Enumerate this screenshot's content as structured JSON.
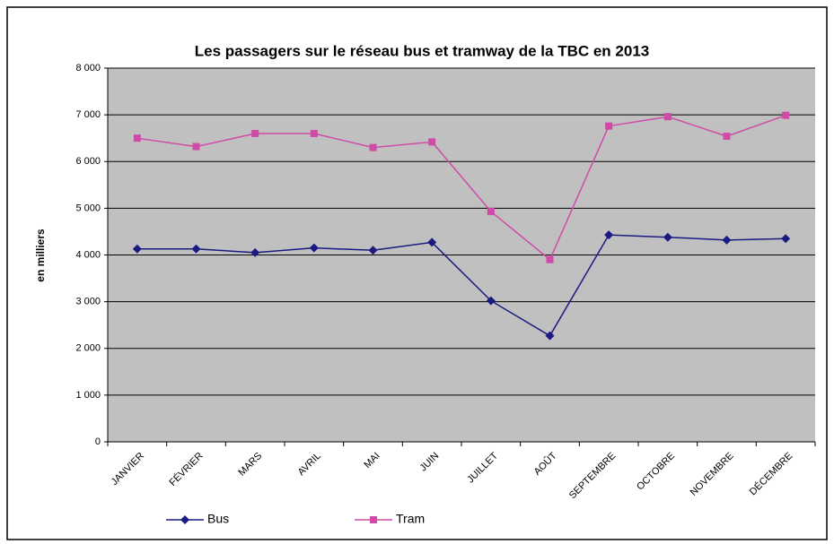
{
  "chart_data": {
    "type": "line",
    "title": "Les passagers sur le réseau bus et tramway de la TBC en 2013",
    "y_label": "en milliers",
    "categories": [
      "JANVIER",
      "FÉVRIER",
      "MARS",
      "AVRIL",
      "MAI",
      "JUIN",
      "JUILLET",
      "AOÛT",
      "SEPTEMBRE",
      "OCTOBRE",
      "NOVEMBRE",
      "DÉCEMBRE"
    ],
    "series": [
      {
        "name": "Bus",
        "color": "#1a1a80",
        "marker": "diamond",
        "values": [
          4130,
          4130,
          4050,
          4150,
          4100,
          4270,
          3020,
          2270,
          4430,
          4380,
          4320,
          4350
        ]
      },
      {
        "name": "Tram",
        "color": "#d04aa8",
        "marker": "square",
        "values": [
          6500,
          6320,
          6600,
          6600,
          6300,
          6420,
          4930,
          3900,
          6760,
          6960,
          6540,
          6990
        ]
      }
    ],
    "ylim": [
      0,
      8000
    ],
    "yticks": [
      0,
      {
        "value": 1000,
        "label": "1 000"
      },
      {
        "value": 2000,
        "label": "2 000"
      },
      {
        "value": 3000,
        "label": "3 000"
      },
      {
        "value": 4000,
        "label": "4 000"
      },
      {
        "value": 5000,
        "label": "5 000"
      },
      {
        "value": 6000,
        "label": "6 000"
      },
      {
        "value": 7000,
        "label": "7 000"
      },
      {
        "value": 8000,
        "label": "8 000"
      }
    ],
    "grid": true,
    "legend": "bottom"
  }
}
